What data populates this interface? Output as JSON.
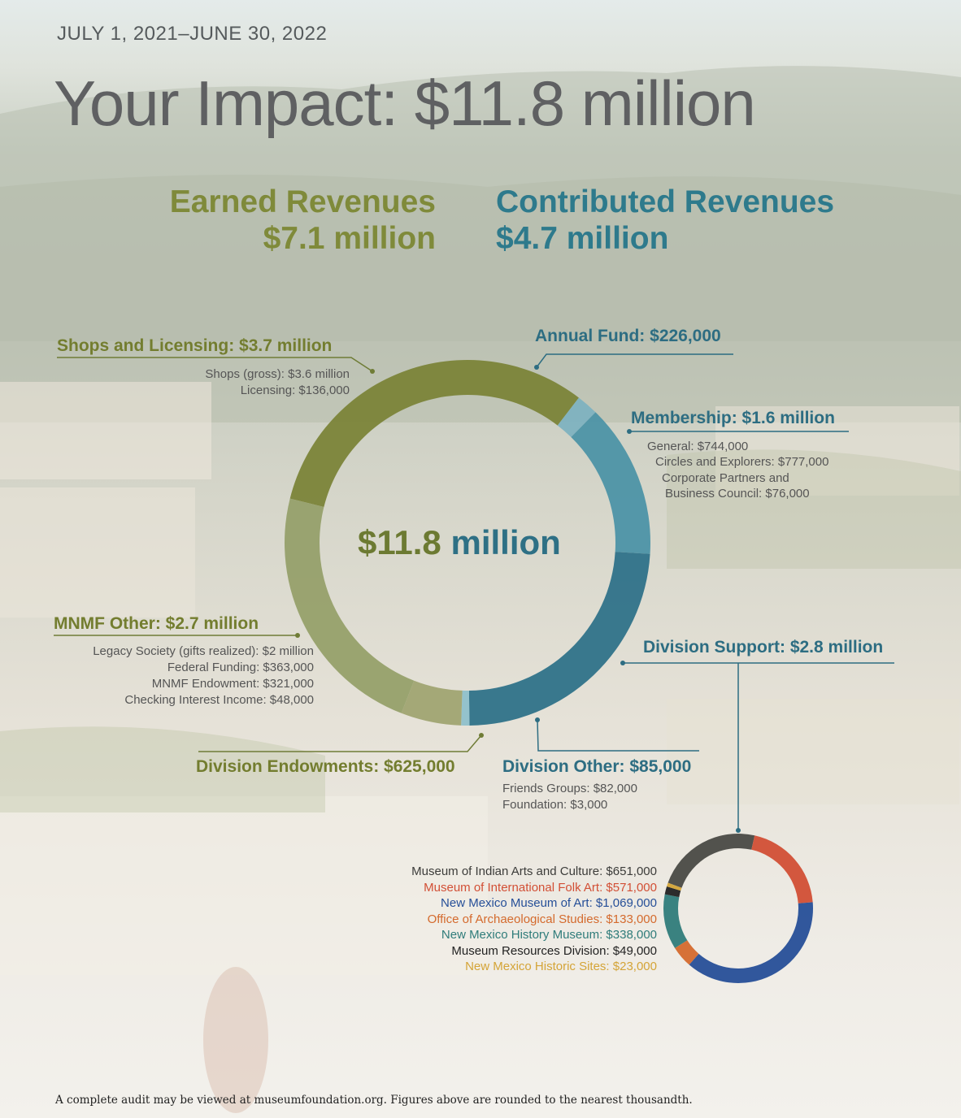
{
  "header": {
    "period": "JULY 1, 2021–JUNE 30, 2022",
    "title": "Your Impact: $11.8 million"
  },
  "summary": {
    "earned_title": "Earned Revenues",
    "earned_value": "$7.1 million",
    "contributed_title": "Contributed Revenues",
    "contributed_value": "$4.7 million"
  },
  "colors": {
    "earned": "#7f8a3a",
    "contributed": "#2e7a8c",
    "olive_dark": "#737d2f",
    "olive_light": "#8d9654",
    "teal_light": "#4b95a8",
    "teal_dark": "#2f7088"
  },
  "chart_data": [
    {
      "type": "pie",
      "donut": true,
      "center_label": "$11.8 million",
      "series": [
        {
          "name": "Shops and Licensing",
          "label": "Shops and Licensing: $3.7 million",
          "value": 3.7,
          "color": "#7b8439",
          "details": [
            "Shops (gross): $3.6 million",
            "Licensing: $136,000"
          ]
        },
        {
          "name": "Annual Fund",
          "label": "Annual Fund: $226,000",
          "value": 0.226,
          "color": "#7eb2c0",
          "details": []
        },
        {
          "name": "Membership",
          "label": "Membership: $1.6 million",
          "value": 1.6,
          "color": "#4d93a6",
          "details": [
            "General: $744,000",
            "Circles and Explorers: $777,000",
            "Corporate Partners and",
            "Business Council: $76,000"
          ]
        },
        {
          "name": "Division Support",
          "label": "Division Support: $2.8 million",
          "value": 2.8,
          "color": "#2f7289",
          "details": []
        },
        {
          "name": "Division Other",
          "label": "Division Other: $85,000",
          "value": 0.085,
          "color": "#8fc0cb",
          "details": [
            "Friends Groups: $82,000",
            "Foundation: $3,000"
          ]
        },
        {
          "name": "Division Endowments",
          "label": "Division Endowments: $625,000",
          "value": 0.625,
          "color": "#a0a472",
          "details": []
        },
        {
          "name": "MNMF Other",
          "label": "MNMF Other: $2.7 million",
          "value": 2.7,
          "color": "#96a06a",
          "details": [
            "Legacy Society (gifts realized): $2 million",
            "Federal Funding: $363,000",
            "MNMF Endowment: $321,000",
            "Checking Interest Income: $48,000"
          ]
        }
      ]
    },
    {
      "type": "pie",
      "donut": true,
      "series": [
        {
          "name": "Museum of Indian Arts and Culture",
          "label": "Museum of Indian Arts and Culture: $651,000",
          "value": 651000,
          "color": "#4a4a44"
        },
        {
          "name": "Museum of International Folk Art",
          "label": "Museum of International Folk Art: $571,000",
          "value": 571000,
          "color": "#d24f35"
        },
        {
          "name": "New Mexico Museum of Art",
          "label": "New Mexico Museum of Art: $1,069,000",
          "value": 1069000,
          "color": "#264f98"
        },
        {
          "name": "Office of Archaeological Studies",
          "label": "Office of Archaeological Studies: $133,000",
          "value": 133000,
          "color": "#d46a2d"
        },
        {
          "name": "New Mexico History Museum",
          "label": "New Mexico History Museum: $338,000",
          "value": 338000,
          "color": "#2f7c7a"
        },
        {
          "name": "Museum Resources Division",
          "label": "Museum Resources Division: $49,000",
          "value": 49000,
          "color": "#222222"
        },
        {
          "name": "New Mexico Historic Sites",
          "label": "New Mexico Historic Sites: $23,000",
          "value": 23000,
          "color": "#d4a437"
        }
      ]
    }
  ],
  "footnote": "A complete audit may be viewed at museumfoundation.org. Figures above are rounded to the nearest thousandth."
}
